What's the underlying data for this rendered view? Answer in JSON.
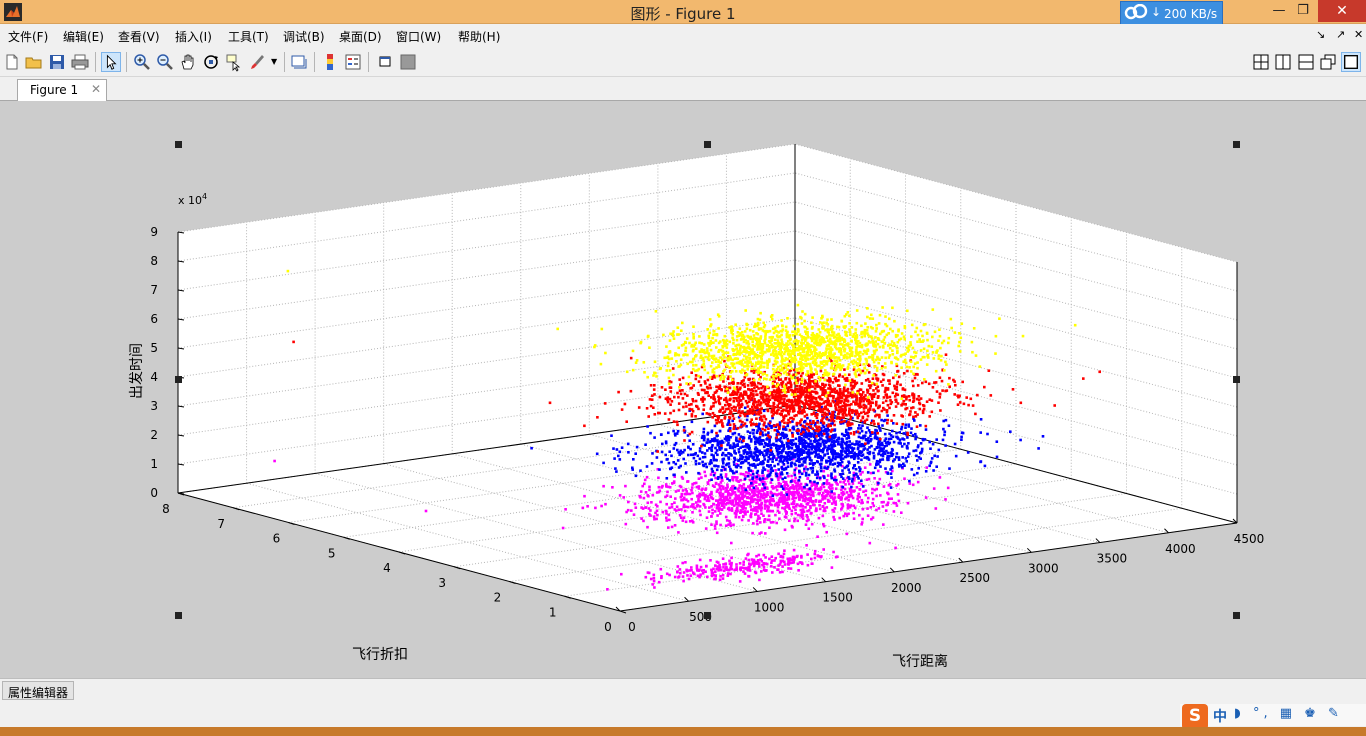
{
  "window": {
    "title": "图形 - Figure 1"
  },
  "net_widget": {
    "arrow": "↓",
    "speed": "200 KB/s"
  },
  "window_controls": {
    "minimize": "—",
    "maximize": "❐",
    "close": "✕"
  },
  "menu": {
    "items": [
      "文件(F)",
      "编辑(E)",
      "查看(V)",
      "插入(I)",
      "工具(T)",
      "调试(B)",
      "桌面(D)",
      "窗口(W)",
      "帮助(H)"
    ],
    "right_glyphs": [
      "↘",
      "↗",
      "✕"
    ]
  },
  "toolbar": {
    "tools": [
      "new-figure-icon",
      "open-file-icon",
      "save-icon",
      "print-icon",
      "pointer-icon",
      "zoom-in-icon",
      "zoom-out-icon",
      "pan-hand-icon",
      "rotate-3d-icon",
      "data-cursor-icon",
      "brush-icon",
      "link-plot-icon",
      "colorbar-icon",
      "legend-icon",
      "hide-plot-tools-icon",
      "show-plot-tools-icon"
    ],
    "layout_tools": [
      "tile-icon",
      "left-right-icon",
      "top-bottom-icon",
      "float-icon",
      "maximize-icon"
    ]
  },
  "tabs": {
    "figure": "Figure 1",
    "close": "✕"
  },
  "bottom": {
    "property_editor": "属性编辑器"
  },
  "ime": {
    "logo": "S",
    "lang": "中",
    "glyphs": "◗ °, ▦ ♚ ✎"
  },
  "colors": {
    "yellow": "#ffff00",
    "red": "#ff0000",
    "blue": "#0000ff",
    "magenta": "#ff00ff",
    "title_bg": "#f2b86e",
    "figure_bg": "#cccccc"
  },
  "chart_data": {
    "type": "scatter",
    "dimensions": 3,
    "xlabel": "飞行距离",
    "ylabel": "飞行折扣",
    "zlabel": "出发时间",
    "z_exponent": "x 10",
    "z_exponent_power": "4",
    "xlim": [
      0,
      4500
    ],
    "ylim": [
      0,
      8
    ],
    "zlim": [
      0,
      90000
    ],
    "x_ticks": [
      "0",
      "500",
      "1000",
      "1500",
      "2000",
      "2500",
      "3000",
      "3500",
      "4000",
      "4500"
    ],
    "y_ticks": [
      "0",
      "1",
      "2",
      "3",
      "4",
      "5",
      "6",
      "7",
      "8"
    ],
    "z_ticks": [
      "0",
      "1",
      "2",
      "3",
      "4",
      "5",
      "6",
      "7",
      "8",
      "9"
    ],
    "grid": true,
    "clusters": [
      {
        "color": "#ffff00",
        "x_center": 2600,
        "x_spread": 750,
        "y_center": 3.2,
        "y_spread": 1.1,
        "z_center": 56000,
        "z_spread": 5000,
        "count": 1500
      },
      {
        "color": "#ff0000",
        "x_center": 2600,
        "x_spread": 750,
        "y_center": 3.2,
        "y_spread": 1.1,
        "z_center": 39000,
        "z_spread": 5000,
        "count": 1500
      },
      {
        "color": "#0000ff",
        "x_center": 2600,
        "x_spread": 750,
        "y_center": 3.2,
        "y_spread": 1.1,
        "z_center": 22000,
        "z_spread": 5000,
        "count": 1500
      },
      {
        "color": "#ff00ff",
        "x_center": 2400,
        "x_spread": 700,
        "y_center": 3.3,
        "y_spread": 1.0,
        "z_center": 6000,
        "z_spread": 3500,
        "count": 1200
      },
      {
        "color": "#ff00ff",
        "x_center": 1300,
        "x_spread": 600,
        "y_center": 1.0,
        "y_spread": 0.35,
        "z_center": 1500,
        "z_spread": 1500,
        "count": 250
      }
    ],
    "outliers": [
      {
        "x": 600,
        "y": 7.5,
        "z": 75000,
        "color": "#ffff00"
      },
      {
        "x": 400,
        "y": 6.9,
        "z": 55000,
        "color": "#ff0000"
      },
      {
        "x": 100,
        "y": 6.5,
        "z": 18000,
        "color": "#ff00ff"
      },
      {
        "x": 3500,
        "y": 0.3,
        "z": 55000,
        "color": "#ff0000"
      },
      {
        "x": 3700,
        "y": 0.5,
        "z": 55000,
        "color": "#ff0000"
      },
      {
        "x": 600,
        "y": 5.0,
        "z": 5000,
        "color": "#ff00ff"
      }
    ]
  }
}
